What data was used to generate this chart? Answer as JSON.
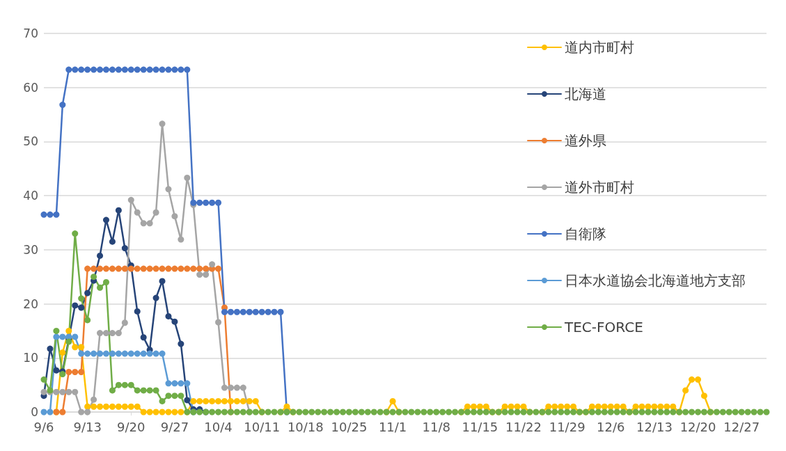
{
  "chart_data": {
    "type": "line",
    "grid": "y",
    "legend": "right",
    "marker": "circle",
    "line_style": "solid",
    "ylim": [
      0,
      70
    ],
    "yticks": [
      0,
      10,
      20,
      30,
      40,
      50,
      60,
      70
    ],
    "categories": [
      "9/6",
      null,
      null,
      null,
      null,
      null,
      null,
      "9/13",
      null,
      null,
      null,
      null,
      null,
      null,
      "9/20",
      null,
      null,
      null,
      null,
      null,
      null,
      "9/27",
      null,
      null,
      null,
      null,
      null,
      null,
      "10/4",
      null,
      null,
      null,
      null,
      null,
      null,
      "10/11",
      null,
      null,
      null,
      null,
      null,
      null,
      "10/18",
      null,
      null,
      null,
      null,
      null,
      null,
      "10/25",
      null,
      null,
      null,
      null,
      null,
      null,
      "11/1",
      null,
      null,
      null,
      null,
      null,
      null,
      "11/8",
      null,
      null,
      null,
      null,
      null,
      null,
      "11/15",
      null,
      null,
      null,
      null,
      null,
      null,
      "11/22",
      null,
      null,
      null,
      null,
      null,
      null,
      "11/29",
      null,
      null,
      null,
      null,
      null,
      null,
      "12/6",
      null,
      null,
      null,
      null,
      null,
      null,
      "12/13",
      null,
      null,
      null,
      null,
      null,
      null,
      "12/20",
      null,
      null,
      null,
      null,
      null,
      null,
      "12/27",
      null,
      null,
      null,
      null
    ],
    "series": [
      {
        "name": "道内市町村",
        "color": "#ffc000",
        "values": [
          null,
          null,
          0,
          11,
          15,
          12,
          12,
          1,
          1,
          1,
          1,
          1,
          1,
          1,
          1,
          1,
          0,
          0,
          0,
          0,
          0,
          0,
          0,
          0,
          2,
          2,
          2,
          2,
          2,
          2,
          2,
          2,
          2,
          2,
          2,
          0,
          null,
          null,
          0,
          1,
          0,
          null,
          null,
          null,
          null,
          null,
          null,
          null,
          null,
          null,
          null,
          null,
          null,
          null,
          null,
          0,
          2,
          0,
          null,
          null,
          null,
          null,
          null,
          null,
          null,
          null,
          null,
          0,
          1,
          1,
          1,
          1,
          0,
          0,
          1,
          1,
          1,
          1,
          0,
          null,
          0,
          1,
          1,
          1,
          1,
          1,
          0,
          0,
          1,
          1,
          1,
          1,
          1,
          1,
          0,
          1,
          1,
          1,
          1,
          1,
          1,
          1,
          0,
          4,
          6,
          6,
          3,
          0,
          null,
          null,
          null,
          null,
          null,
          null,
          null,
          null,
          null
        ]
      },
      {
        "name": "北海道",
        "color": "#264478",
        "values": [
          3,
          11.7,
          7.7,
          7.5,
          13.5,
          19.7,
          19.3,
          22,
          24.3,
          28.9,
          35.5,
          31.5,
          37.3,
          30.3,
          27.1,
          18.6,
          13.8,
          11.5,
          21.1,
          24.2,
          17.7,
          16.7,
          12.6,
          2.2,
          0.5,
          0.5,
          0,
          null,
          null,
          null,
          null,
          null,
          null,
          null,
          null,
          null,
          null,
          null,
          null,
          null,
          null,
          null,
          null,
          null,
          null,
          null,
          null,
          null,
          null,
          null,
          null,
          null,
          null,
          null,
          null,
          null,
          null,
          null,
          null,
          null,
          null,
          null,
          null,
          null,
          null,
          null,
          null,
          null,
          null,
          null,
          null,
          null,
          null,
          null,
          null,
          null,
          null,
          null,
          null,
          null,
          null,
          null,
          null,
          null,
          null,
          null,
          null,
          null,
          null,
          null,
          null,
          null,
          null,
          null,
          null,
          null,
          null,
          null,
          null,
          null,
          null,
          null,
          null,
          null,
          null,
          null,
          null,
          null,
          null,
          null,
          null,
          null,
          null,
          null,
          null,
          null,
          null
        ]
      },
      {
        "name": "道外県",
        "color": "#ed7d31",
        "values": [
          null,
          null,
          0,
          0,
          7.4,
          7.4,
          7.4,
          26.5,
          26.5,
          26.5,
          26.5,
          26.5,
          26.5,
          26.5,
          26.5,
          26.5,
          26.5,
          26.5,
          26.5,
          26.5,
          26.5,
          26.5,
          26.5,
          26.5,
          26.5,
          26.5,
          26.5,
          26.5,
          26.5,
          19.3,
          0,
          null,
          null,
          null,
          null,
          null,
          null,
          null,
          null,
          null,
          null,
          null,
          null,
          null,
          null,
          null,
          null,
          null,
          null,
          null,
          null,
          null,
          null,
          null,
          null,
          null,
          null,
          null,
          null,
          null,
          null,
          null,
          null,
          null,
          null,
          null,
          null,
          null,
          null,
          null,
          null,
          null,
          null,
          null,
          null,
          null,
          null,
          null,
          null,
          null,
          null,
          null,
          null,
          null,
          null,
          null,
          null,
          null,
          null,
          null,
          null,
          null,
          null,
          null,
          null,
          null,
          null,
          null,
          null,
          null,
          null,
          null,
          null,
          null,
          null,
          null,
          null,
          null,
          null,
          null,
          null,
          null,
          null,
          null,
          null,
          null,
          null
        ]
      },
      {
        "name": "道外市町村",
        "color": "#a5a5a5",
        "values": [
          3.7,
          3.7,
          3.7,
          3.7,
          3.7,
          3.7,
          0,
          0,
          2.3,
          14.6,
          14.6,
          14.6,
          14.6,
          16.5,
          39.2,
          36.9,
          34.9,
          34.9,
          36.9,
          53.3,
          41.2,
          36.2,
          31.9,
          43.3,
          38.3,
          25.4,
          25.4,
          27.3,
          16.6,
          4.5,
          4.5,
          4.5,
          4.5,
          0,
          null,
          null,
          null,
          null,
          null,
          null,
          null,
          null,
          null,
          null,
          null,
          null,
          null,
          null,
          null,
          null,
          null,
          null,
          null,
          null,
          null,
          null,
          null,
          null,
          null,
          null,
          null,
          null,
          null,
          null,
          null,
          null,
          null,
          null,
          null,
          null,
          null,
          null,
          null,
          null,
          null,
          null,
          null,
          null,
          null,
          null,
          null,
          null,
          null,
          null,
          null,
          null,
          null,
          null,
          null,
          null,
          null,
          null,
          null,
          null,
          null,
          null,
          null,
          null,
          null,
          null,
          null,
          null,
          null,
          null,
          null,
          null,
          null,
          null,
          null,
          null,
          null,
          null,
          null,
          null,
          null,
          null,
          null
        ]
      },
      {
        "name": "自衛隊",
        "color": "#4472c4",
        "values": [
          36.5,
          36.5,
          36.5,
          56.8,
          63.3,
          63.3,
          63.3,
          63.3,
          63.3,
          63.3,
          63.3,
          63.3,
          63.3,
          63.3,
          63.3,
          63.3,
          63.3,
          63.3,
          63.3,
          63.3,
          63.3,
          63.3,
          63.3,
          63.3,
          38.7,
          38.7,
          38.7,
          38.7,
          38.7,
          18.5,
          18.5,
          18.5,
          18.5,
          18.5,
          18.5,
          18.5,
          18.5,
          18.5,
          18.5,
          0,
          null,
          null,
          null,
          null,
          null,
          null,
          null,
          null,
          null,
          null,
          null,
          null,
          null,
          null,
          null,
          null,
          null,
          null,
          null,
          null,
          null,
          null,
          null,
          null,
          null,
          null,
          null,
          null,
          null,
          null,
          null,
          null,
          null,
          null,
          null,
          null,
          null,
          null,
          null,
          null,
          null,
          null,
          null,
          null,
          null,
          null,
          null,
          null,
          null,
          null,
          null,
          null,
          null,
          null,
          null,
          null,
          null,
          null,
          null,
          null,
          null,
          null,
          null,
          null,
          null,
          null,
          null,
          null,
          null,
          null,
          null,
          null,
          null,
          null,
          null,
          null,
          null
        ]
      },
      {
        "name": "日本水道協会北海道地方支部",
        "color": "#5b9bd5",
        "values": [
          0,
          0,
          13.9,
          13.9,
          13.9,
          13.9,
          10.8,
          10.8,
          10.8,
          10.8,
          10.8,
          10.8,
          10.8,
          10.8,
          10.8,
          10.8,
          10.8,
          10.8,
          10.8,
          10.8,
          5.3,
          5.3,
          5.3,
          5.3,
          0,
          null,
          null,
          null,
          null,
          null,
          null,
          null,
          null,
          null,
          null,
          null,
          null,
          null,
          null,
          null,
          null,
          null,
          null,
          null,
          null,
          null,
          null,
          null,
          null,
          null,
          null,
          null,
          null,
          null,
          null,
          null,
          null,
          null,
          null,
          null,
          null,
          null,
          null,
          null,
          null,
          null,
          null,
          null,
          null,
          null,
          null,
          null,
          null,
          null,
          null,
          null,
          null,
          null,
          null,
          null,
          null,
          null,
          null,
          null,
          null,
          null,
          null,
          null,
          null,
          null,
          null,
          null,
          null,
          null,
          null,
          null,
          null,
          null,
          null,
          null,
          null,
          null,
          null,
          null,
          null,
          null,
          null,
          null,
          null,
          null,
          null,
          null,
          null,
          null,
          null,
          null,
          null
        ]
      },
      {
        "name": "TEC-FORCE",
        "color": "#70ad47",
        "values": [
          6,
          4,
          15,
          7,
          13,
          33,
          21,
          17,
          25,
          23,
          24,
          4,
          5,
          5,
          5,
          4,
          4,
          4,
          4,
          2,
          3,
          3,
          3,
          0,
          0,
          0,
          0,
          0,
          0,
          0,
          0,
          0,
          0,
          0,
          0,
          0,
          0,
          0,
          0,
          0,
          0,
          0,
          0,
          0,
          0,
          0,
          0,
          0,
          0,
          0,
          0,
          0,
          0,
          0,
          0,
          0,
          0,
          0,
          0,
          0,
          0,
          0,
          0,
          0,
          0,
          0,
          0,
          0,
          0,
          0,
          0,
          0,
          0,
          0,
          0,
          0,
          0,
          0,
          0,
          0,
          0,
          0,
          0,
          0,
          0,
          0,
          0,
          0,
          0,
          0,
          0,
          0,
          0,
          0,
          0,
          0,
          0,
          0,
          0,
          0,
          0,
          0,
          0,
          0,
          0,
          0,
          0,
          0,
          0,
          0,
          0,
          0,
          0,
          0,
          0,
          0,
          0
        ]
      }
    ]
  }
}
